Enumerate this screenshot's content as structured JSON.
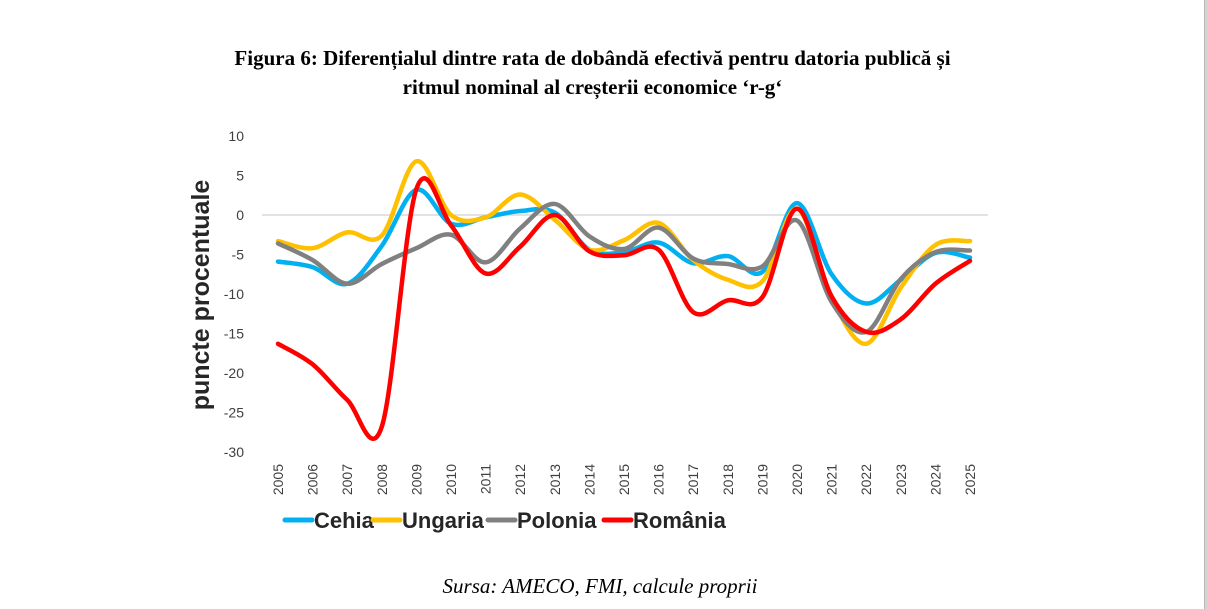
{
  "title_line1": "Figura 6: Diferențialul dintre rata de dobândă efectivă pentru datoria publică și",
  "title_line2": "ritmul nominal al creșterii economice ‘r-g‘",
  "source": "Sursa: AMECO, FMI, calcule proprii",
  "chart_data": {
    "type": "line",
    "title": "Figura 6: Diferențialul dintre rata de dobândă efectivă pentru datoria publică și ritmul nominal al creșterii economice ‘r-g‘",
    "xlabel": "",
    "ylabel": "puncte procentuale",
    "ylim": [
      -30,
      10
    ],
    "yticks": [
      10,
      5,
      0,
      -5,
      -10,
      -15,
      -20,
      -25,
      -30
    ],
    "grid": "zero-line only",
    "legend": "bottom",
    "smooth": true,
    "categories": [
      "2005",
      "2006",
      "2007",
      "2008",
      "2009",
      "2010",
      "2011",
      "2012",
      "2013",
      "2014",
      "2015",
      "2016",
      "2017",
      "2018",
      "2019",
      "2020",
      "2021",
      "2022",
      "2023",
      "2024",
      "2025"
    ],
    "series": [
      {
        "name": "Cehia",
        "color": "#00b0f0",
        "values": [
          -5.9,
          -6.6,
          -8.7,
          -3.9,
          3.2,
          -1.1,
          -0.3,
          0.5,
          0.3,
          -4.4,
          -4.7,
          -3.5,
          -6.1,
          -5.2,
          -7.2,
          1.5,
          -7.5,
          -11.2,
          -8.2,
          -4.8,
          -5.4
        ]
      },
      {
        "name": "Ungaria",
        "color": "#ffc000",
        "values": [
          -3.3,
          -4.2,
          -2.2,
          -2.6,
          6.8,
          0.0,
          -0.3,
          2.6,
          -0.6,
          -4.4,
          -3.2,
          -1.0,
          -5.7,
          -8.2,
          -8.4,
          0.8,
          -10.5,
          -16.3,
          -9.2,
          -3.8,
          -3.3
        ]
      },
      {
        "name": "Polonia",
        "color": "#808080",
        "values": [
          -3.6,
          -5.7,
          -8.7,
          -6.2,
          -4.2,
          -2.5,
          -6.0,
          -1.7,
          1.4,
          -2.7,
          -4.3,
          -1.6,
          -5.5,
          -6.2,
          -6.5,
          -0.7,
          -11.0,
          -14.8,
          -8.1,
          -4.7,
          -4.5
        ]
      },
      {
        "name": "România",
        "color": "#ff0000",
        "values": [
          -16.3,
          -18.9,
          -23.4,
          -26.8,
          3.3,
          -1.3,
          -7.4,
          -4.0,
          0.0,
          -4.6,
          -5.1,
          -4.4,
          -12.3,
          -10.8,
          -10.4,
          0.8,
          -10.3,
          -14.8,
          -13.2,
          -8.7,
          -5.8
        ]
      }
    ]
  }
}
